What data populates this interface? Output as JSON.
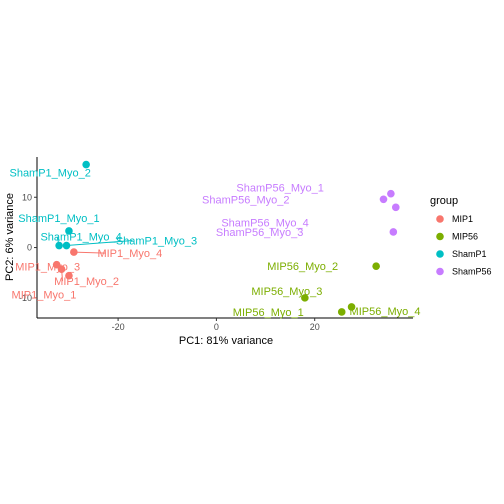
{
  "chart_data": {
    "type": "scatter",
    "xlabel": "PC1: 81% variance",
    "ylabel": "PC2: 6% variance",
    "xlim": [
      -36.5,
      40
    ],
    "ylim": [
      -14,
      18
    ],
    "x_ticks": [
      -20,
      0,
      20
    ],
    "y_ticks": [
      -10,
      0,
      10
    ],
    "x_tick_labels": [
      "-20",
      "0",
      "20"
    ],
    "y_tick_labels": [
      "-10",
      "0",
      "10"
    ],
    "grid": false,
    "legend": {
      "title": "group",
      "position": "right",
      "items": [
        {
          "label": "MIP1",
          "color": "#F8766D"
        },
        {
          "label": "MIP56",
          "color": "#7CAE00"
        },
        {
          "label": "ShamP1",
          "color": "#00BFC4"
        },
        {
          "label": "ShamP56",
          "color": "#C77CFF"
        }
      ]
    },
    "points": [
      {
        "name": "MIP1_Myo_1",
        "group": "MIP1",
        "x": -30.0,
        "y": -5.6
      },
      {
        "name": "MIP1_Myo_2",
        "group": "MIP1",
        "x": -31.5,
        "y": -4.3
      },
      {
        "name": "MIP1_Myo_3",
        "group": "MIP1",
        "x": -32.5,
        "y": -3.4
      },
      {
        "name": "MIP1_Myo_4",
        "group": "MIP1",
        "x": -29.0,
        "y": -0.9
      },
      {
        "name": "MIP56_Myo_1",
        "group": "MIP56",
        "x": 25.5,
        "y": -12.8
      },
      {
        "name": "MIP56_Myo_2",
        "group": "MIP56",
        "x": 32.5,
        "y": -3.7
      },
      {
        "name": "MIP56_Myo_3",
        "group": "MIP56",
        "x": 18.0,
        "y": -10.0
      },
      {
        "name": "MIP56_Myo_4",
        "group": "MIP56",
        "x": 27.5,
        "y": -11.8
      },
      {
        "name": "ShamP1_Myo_1",
        "group": "ShamP1",
        "x": -30.0,
        "y": 3.3
      },
      {
        "name": "ShamP1_Myo_2",
        "group": "ShamP1",
        "x": -26.5,
        "y": 16.5
      },
      {
        "name": "ShamP1_Myo_3",
        "group": "ShamP1",
        "x": -30.5,
        "y": 0.4
      },
      {
        "name": "ShamP1_Myo_4",
        "group": "ShamP1",
        "x": -32.0,
        "y": 0.4
      },
      {
        "name": "ShamP56_Myo_1",
        "group": "ShamP56",
        "x": 35.5,
        "y": 10.7
      },
      {
        "name": "ShamP56_Myo_2",
        "group": "ShamP56",
        "x": 34.0,
        "y": 9.6
      },
      {
        "name": "ShamP56_Myo_3",
        "group": "ShamP56",
        "x": 36.0,
        "y": 3.1
      },
      {
        "name": "ShamP56_Myo_4",
        "group": "ShamP56",
        "x": 36.5,
        "y": 8.0
      }
    ]
  }
}
